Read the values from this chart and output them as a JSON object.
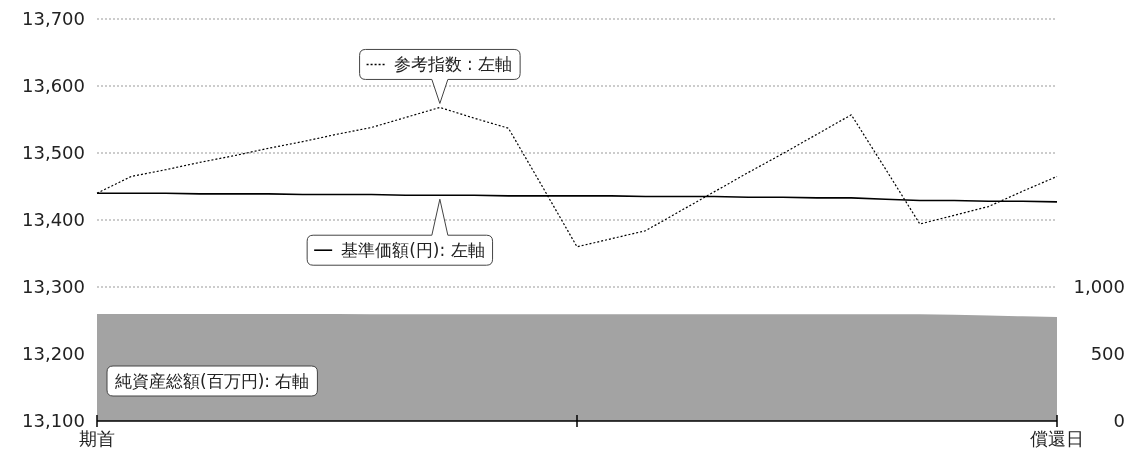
{
  "chart_data": {
    "type": "line",
    "categories": [
      "期首",
      null,
      null,
      null,
      null,
      null,
      null,
      null,
      null,
      null,
      null,
      null,
      null,
      null,
      null,
      null,
      null,
      null,
      null,
      null,
      null,
      null,
      null,
      null,
      null,
      null,
      null,
      null,
      "償還日"
    ],
    "ylim": [
      13100,
      13700
    ],
    "yticks": [
      {
        "value": 13100,
        "label": "13,100"
      },
      {
        "value": 13200,
        "label": "13,200"
      },
      {
        "value": 13300,
        "label": "13,300"
      },
      {
        "value": 13400,
        "label": "13,400"
      },
      {
        "value": 13500,
        "label": "13,500"
      },
      {
        "value": 13600,
        "label": "13,600"
      },
      {
        "value": 13700,
        "label": "13,700"
      }
    ],
    "y2lim": [
      0,
      3000
    ],
    "y2ticks": [
      0,
      500,
      {
        "value": 1000,
        "label": "1,000"
      }
    ],
    "grid": "y",
    "legend": "top",
    "series": [
      {
        "name": "参考指数 : 左軸",
        "line_style": "dotted",
        "color": "#000000",
        "values": [
          13440,
          13465,
          13475,
          13486,
          13496,
          13507,
          13517,
          13528,
          13538,
          13553,
          13568,
          13552,
          13537,
          13449,
          13360,
          13372,
          13384,
          13413,
          13442,
          13471,
          13499,
          13528,
          13557,
          13476,
          13394,
          13407,
          13420,
          13443,
          13465
        ]
      },
      {
        "name": "基準価額(円): 左軸",
        "line_style": "solid",
        "color": "#000000",
        "values": [
          13440,
          13440,
          13440,
          13439,
          13439,
          13439,
          13438,
          13438,
          13438,
          13437,
          13437,
          13437,
          13436,
          13436,
          13436,
          13436,
          13435,
          13435,
          13435,
          13434,
          13434,
          13433,
          13433,
          13431,
          13429,
          13429,
          13428,
          13428,
          13427
        ]
      },
      {
        "name": "純資産総額(百万円): 右軸",
        "type": "area",
        "axis": "y2",
        "color": "#a3a3a3",
        "values": [
          798,
          798,
          798,
          798,
          798,
          798,
          798,
          798,
          797,
          797,
          797,
          797,
          797,
          797,
          797,
          797,
          796,
          796,
          796,
          796,
          796,
          796,
          796,
          796,
          796,
          792,
          787,
          781,
          776
        ]
      }
    ]
  }
}
